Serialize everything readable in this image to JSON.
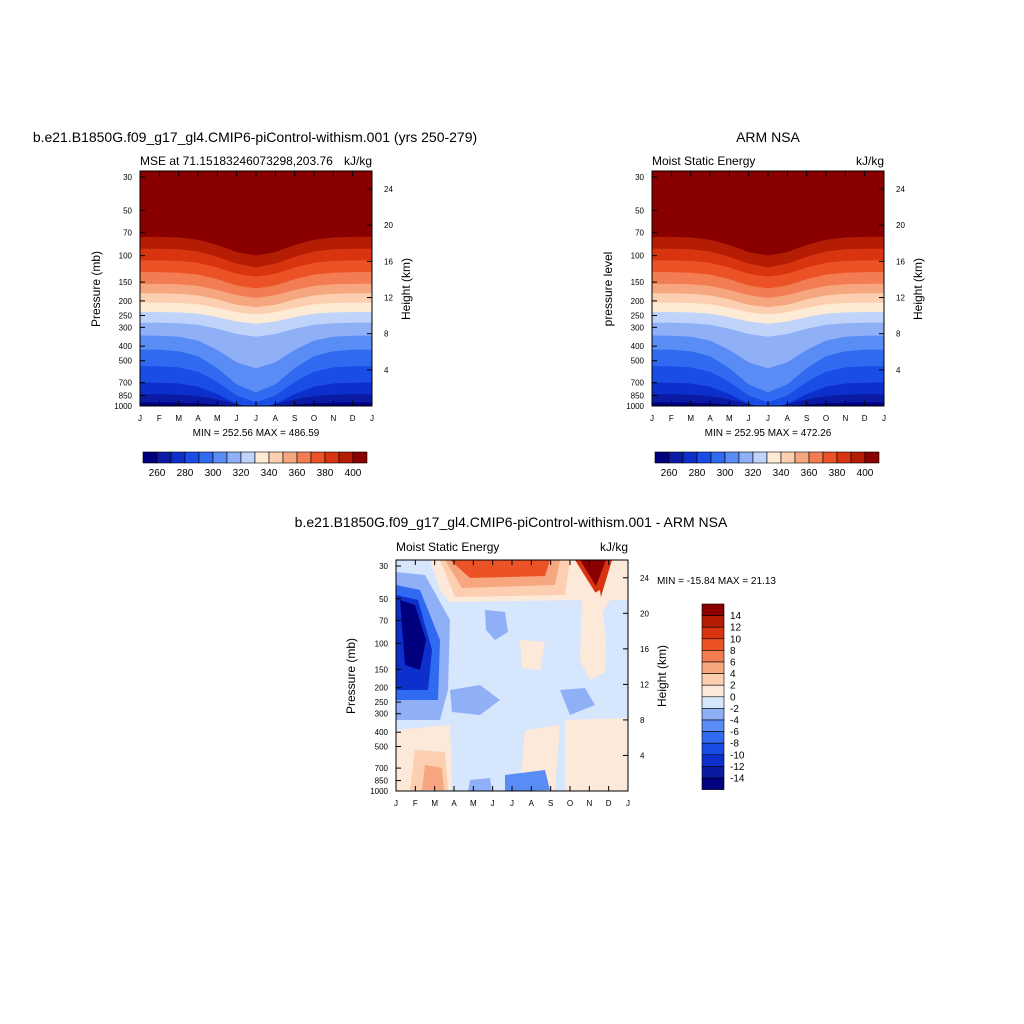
{
  "chart_data": [
    {
      "type": "heatmap",
      "title": "b.e21.B1850G.f09_g17_gl4.CMIP6-piControl-withism.001 (yrs 250-279)",
      "subtitle_left": "MSE at 71.15183246073298,203.76",
      "subtitle_right": "kJ/kg",
      "ylabel": "Pressure (mb)",
      "ylabel_right": "Height (km)",
      "x_ticks": [
        "J",
        "F",
        "M",
        "A",
        "M",
        "J",
        "J",
        "A",
        "S",
        "O",
        "N",
        "D",
        "J"
      ],
      "y_ticks": [
        "30",
        "50",
        "70",
        "100",
        "150",
        "200",
        "250",
        "300",
        "400",
        "500",
        "700",
        "850",
        "1000"
      ],
      "y_ticks_right": [
        "24",
        "20",
        "16",
        "12",
        "8",
        "4"
      ],
      "stats": "MIN = 252.56 MAX = 486.59",
      "colorbar_labels": [
        "260",
        "280",
        "300",
        "320",
        "340",
        "360",
        "380",
        "400"
      ],
      "levels": [
        260,
        270,
        280,
        290,
        300,
        310,
        320,
        330,
        340,
        350,
        360,
        370,
        380,
        390,
        400
      ],
      "colorbar_orientation": "horizontal"
    },
    {
      "type": "heatmap",
      "title": "ARM NSA",
      "subtitle_left": "Moist Static Energy",
      "subtitle_right": "kJ/kg",
      "ylabel": "pressure level",
      "ylabel_right": "Height (km)",
      "x_ticks": [
        "J",
        "F",
        "M",
        "A",
        "M",
        "J",
        "J",
        "A",
        "S",
        "O",
        "N",
        "D",
        "J"
      ],
      "y_ticks": [
        "30",
        "50",
        "70",
        "100",
        "150",
        "200",
        "250",
        "300",
        "400",
        "500",
        "700",
        "850",
        "1000"
      ],
      "y_ticks_right": [
        "24",
        "20",
        "16",
        "12",
        "8",
        "4"
      ],
      "stats": "MIN = 252.95 MAX = 472.26",
      "colorbar_labels": [
        "260",
        "280",
        "300",
        "320",
        "340",
        "360",
        "380",
        "400"
      ],
      "levels": [
        260,
        270,
        280,
        290,
        300,
        310,
        320,
        330,
        340,
        350,
        360,
        370,
        380,
        390,
        400
      ],
      "colorbar_orientation": "horizontal"
    },
    {
      "type": "heatmap",
      "title": "b.e21.B1850G.f09_g17_gl4.CMIP6-piControl-withism.001 - ARM NSA",
      "subtitle_left": "Moist Static Energy",
      "subtitle_right": "kJ/kg",
      "ylabel": "Pressure (mb)",
      "ylabel_right": "Height (km)",
      "x_ticks": [
        "J",
        "F",
        "M",
        "A",
        "M",
        "J",
        "J",
        "A",
        "S",
        "O",
        "N",
        "D",
        "J"
      ],
      "y_ticks": [
        "30",
        "50",
        "70",
        "100",
        "150",
        "200",
        "250",
        "300",
        "400",
        "500",
        "700",
        "850",
        "1000"
      ],
      "y_ticks_right": [
        "24",
        "20",
        "16",
        "12",
        "8",
        "4"
      ],
      "stats": "MIN = -15.84 MAX =  21.13",
      "colorbar_labels": [
        "14",
        "12",
        "10",
        "8",
        "6",
        "4",
        "2",
        "0",
        "-2",
        "-4",
        "-6",
        "-8",
        "-10",
        "-12",
        "-14"
      ],
      "levels": [
        -14,
        -12,
        -10,
        -8,
        -6,
        -4,
        -2,
        0,
        2,
        4,
        6,
        8,
        10,
        12,
        14
      ],
      "colorbar_orientation": "vertical"
    }
  ],
  "colors": {
    "blue_red_16": [
      "#00007f",
      "#0a1aa3",
      "#0d2fcc",
      "#1a4de6",
      "#2f6af0",
      "#5a8cf5",
      "#8fb0f7",
      "#bfd3fb",
      "#fdebd6",
      "#fbcfb0",
      "#f7a77f",
      "#f27d52",
      "#eb5326",
      "#d8340f",
      "#b41d04",
      "#8a0000"
    ],
    "diff_16": [
      "#00007f",
      "#0a1aa3",
      "#0d2fcc",
      "#1a4de6",
      "#2f6af0",
      "#5a8cf5",
      "#8fb0f7",
      "#d6e6fd",
      "#fde9d9",
      "#fbcfb0",
      "#f7a77f",
      "#f27d52",
      "#eb5326",
      "#d8340f",
      "#b41d04",
      "#8a0000"
    ]
  }
}
